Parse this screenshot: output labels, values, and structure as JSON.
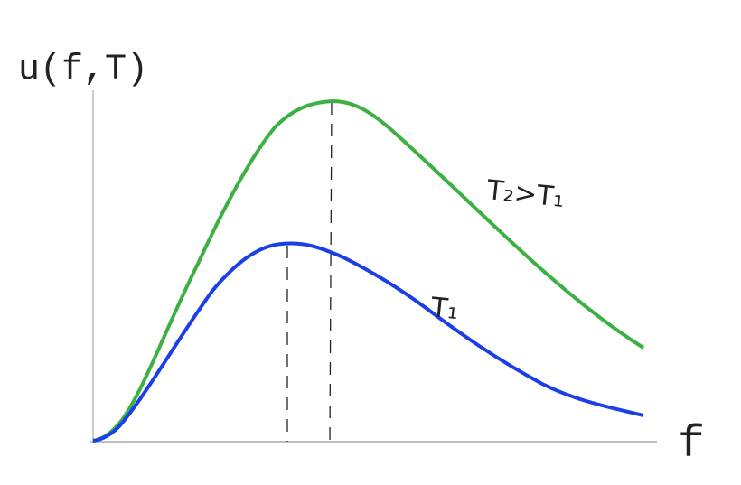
{
  "axes": {
    "y_label": "u(f,T)",
    "x_label": "f"
  },
  "curves": [
    {
      "label": "T₁"
    },
    {
      "label": "T₂>T₁"
    }
  ]
}
